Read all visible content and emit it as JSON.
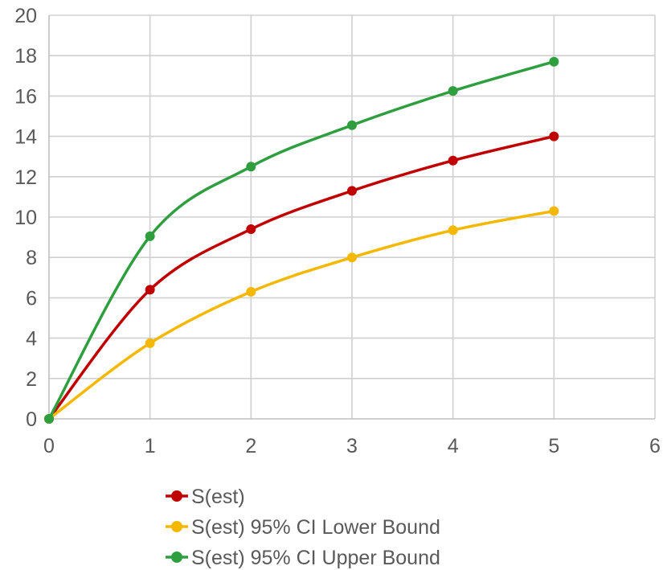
{
  "chart_data": {
    "type": "line",
    "title": "",
    "xlabel": "",
    "ylabel": "",
    "xlim": [
      0,
      6
    ],
    "ylim": [
      0,
      20
    ],
    "x_ticks": [
      0,
      1,
      2,
      3,
      4,
      5,
      6
    ],
    "y_ticks": [
      0,
      2,
      4,
      6,
      8,
      10,
      12,
      14,
      16,
      18,
      20
    ],
    "grid": true,
    "smooth": true,
    "legend_position": "bottom",
    "x": [
      0,
      1,
      2,
      3,
      4,
      5
    ],
    "series": [
      {
        "name": "S(est)",
        "color": "#c00000",
        "values": [
          0,
          6.4,
          9.4,
          11.3,
          12.8,
          14.0
        ]
      },
      {
        "name": "S(est) 95% CI Lower Bound",
        "color": "#f5b800",
        "values": [
          0,
          3.75,
          6.3,
          8.0,
          9.35,
          10.3
        ]
      },
      {
        "name": "S(est) 95% CI Upper Bound",
        "color": "#2e9e3e",
        "values": [
          0,
          9.05,
          12.5,
          14.55,
          16.25,
          17.7
        ]
      }
    ]
  }
}
